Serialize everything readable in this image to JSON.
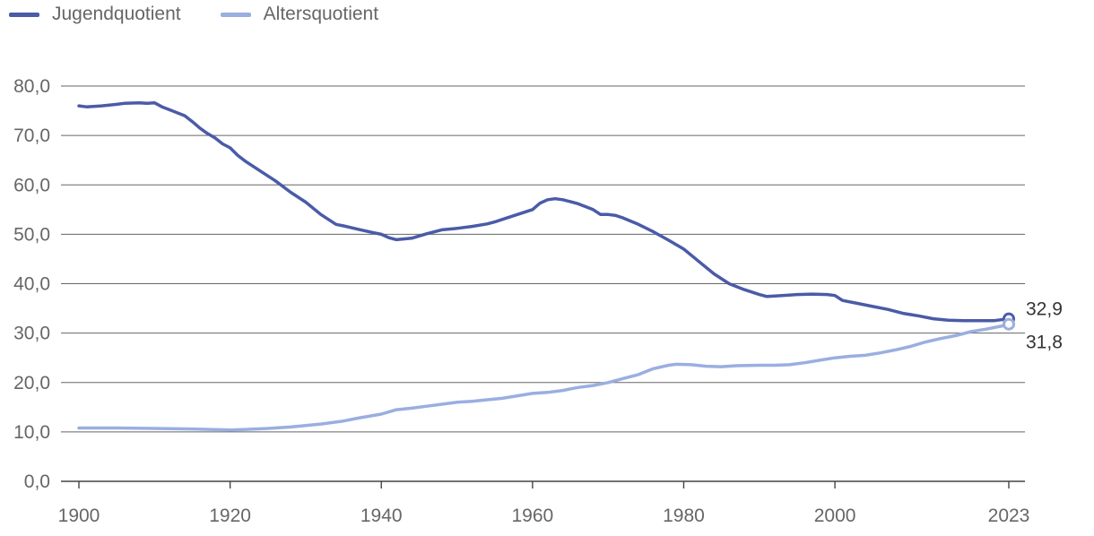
{
  "chart_data": {
    "type": "line",
    "title": "",
    "xlabel": "",
    "ylabel": "",
    "xlim": [
      1900,
      2023
    ],
    "ylim": [
      0,
      80
    ],
    "x_ticks": [
      1900,
      1920,
      1940,
      1960,
      1980,
      2000,
      2023
    ],
    "x_tick_labels": [
      "1900",
      "1920",
      "1940",
      "1960",
      "1980",
      "2000",
      "2023"
    ],
    "y_ticks": [
      0,
      10,
      20,
      30,
      40,
      50,
      60,
      70,
      80
    ],
    "y_tick_labels": [
      "0,0",
      "10,0",
      "20,0",
      "30,0",
      "40,0",
      "50,0",
      "60,0",
      "70,0",
      "80,0"
    ],
    "grid": "horizontal",
    "legend_position": "top-left",
    "series": [
      {
        "name": "Jugendquotient",
        "color": "#4a5ba8",
        "end_label": "32,9",
        "points": [
          [
            1900,
            76.0
          ],
          [
            1901,
            75.8
          ],
          [
            1903,
            76.0
          ],
          [
            1905,
            76.3
          ],
          [
            1906,
            76.5
          ],
          [
            1908,
            76.6
          ],
          [
            1909,
            76.5
          ],
          [
            1910,
            76.6
          ],
          [
            1911,
            75.8
          ],
          [
            1912,
            75.2
          ],
          [
            1914,
            74.0
          ],
          [
            1915,
            72.8
          ],
          [
            1916,
            71.5
          ],
          [
            1917,
            70.4
          ],
          [
            1918,
            69.5
          ],
          [
            1919,
            68.3
          ],
          [
            1920,
            67.5
          ],
          [
            1921,
            66.0
          ],
          [
            1922,
            64.8
          ],
          [
            1924,
            62.8
          ],
          [
            1926,
            60.8
          ],
          [
            1928,
            58.5
          ],
          [
            1930,
            56.5
          ],
          [
            1932,
            54.0
          ],
          [
            1934,
            52.0
          ],
          [
            1935,
            51.7
          ],
          [
            1937,
            51.0
          ],
          [
            1939,
            50.3
          ],
          [
            1940,
            50.0
          ],
          [
            1941,
            49.3
          ],
          [
            1942,
            48.9
          ],
          [
            1944,
            49.2
          ],
          [
            1946,
            50.1
          ],
          [
            1948,
            50.9
          ],
          [
            1950,
            51.2
          ],
          [
            1952,
            51.6
          ],
          [
            1954,
            52.1
          ],
          [
            1955,
            52.5
          ],
          [
            1956,
            53.0
          ],
          [
            1958,
            54.0
          ],
          [
            1960,
            55.0
          ],
          [
            1961,
            56.3
          ],
          [
            1962,
            57.0
          ],
          [
            1963,
            57.2
          ],
          [
            1964,
            57.0
          ],
          [
            1966,
            56.2
          ],
          [
            1968,
            55.0
          ],
          [
            1969,
            54.0
          ],
          [
            1970,
            54.0
          ],
          [
            1971,
            53.8
          ],
          [
            1972,
            53.3
          ],
          [
            1974,
            52.0
          ],
          [
            1976,
            50.5
          ],
          [
            1978,
            48.8
          ],
          [
            1980,
            47.0
          ],
          [
            1982,
            44.5
          ],
          [
            1984,
            42.0
          ],
          [
            1986,
            40.0
          ],
          [
            1988,
            38.8
          ],
          [
            1990,
            37.8
          ],
          [
            1991,
            37.4
          ],
          [
            1993,
            37.6
          ],
          [
            1995,
            37.8
          ],
          [
            1997,
            37.9
          ],
          [
            1999,
            37.8
          ],
          [
            2000,
            37.6
          ],
          [
            2001,
            36.6
          ],
          [
            2003,
            36.0
          ],
          [
            2005,
            35.4
          ],
          [
            2007,
            34.8
          ],
          [
            2009,
            34.0
          ],
          [
            2011,
            33.5
          ],
          [
            2013,
            32.9
          ],
          [
            2015,
            32.6
          ],
          [
            2017,
            32.5
          ],
          [
            2019,
            32.5
          ],
          [
            2021,
            32.5
          ],
          [
            2022,
            32.7
          ],
          [
            2023,
            32.9
          ]
        ]
      },
      {
        "name": "Altersquotient",
        "color": "#9aaee0",
        "end_label": "31,8",
        "points": [
          [
            1900,
            10.8
          ],
          [
            1905,
            10.8
          ],
          [
            1910,
            10.7
          ],
          [
            1915,
            10.6
          ],
          [
            1920,
            10.4
          ],
          [
            1922,
            10.5
          ],
          [
            1925,
            10.7
          ],
          [
            1928,
            11.0
          ],
          [
            1930,
            11.3
          ],
          [
            1932,
            11.6
          ],
          [
            1935,
            12.2
          ],
          [
            1937,
            12.8
          ],
          [
            1940,
            13.6
          ],
          [
            1942,
            14.5
          ],
          [
            1944,
            14.8
          ],
          [
            1946,
            15.2
          ],
          [
            1948,
            15.6
          ],
          [
            1950,
            16.0
          ],
          [
            1952,
            16.2
          ],
          [
            1954,
            16.5
          ],
          [
            1956,
            16.8
          ],
          [
            1958,
            17.3
          ],
          [
            1960,
            17.8
          ],
          [
            1962,
            18.0
          ],
          [
            1964,
            18.4
          ],
          [
            1966,
            19.0
          ],
          [
            1968,
            19.4
          ],
          [
            1970,
            20.0
          ],
          [
            1972,
            20.8
          ],
          [
            1974,
            21.6
          ],
          [
            1976,
            22.8
          ],
          [
            1978,
            23.5
          ],
          [
            1979,
            23.7
          ],
          [
            1981,
            23.6
          ],
          [
            1983,
            23.3
          ],
          [
            1985,
            23.2
          ],
          [
            1987,
            23.4
          ],
          [
            1990,
            23.5
          ],
          [
            1992,
            23.5
          ],
          [
            1994,
            23.6
          ],
          [
            1996,
            24.0
          ],
          [
            1998,
            24.5
          ],
          [
            2000,
            25.0
          ],
          [
            2002,
            25.3
          ],
          [
            2004,
            25.5
          ],
          [
            2006,
            26.0
          ],
          [
            2008,
            26.6
          ],
          [
            2010,
            27.3
          ],
          [
            2012,
            28.2
          ],
          [
            2014,
            28.9
          ],
          [
            2016,
            29.5
          ],
          [
            2018,
            30.3
          ],
          [
            2020,
            30.8
          ],
          [
            2022,
            31.4
          ],
          [
            2023,
            31.8
          ]
        ]
      }
    ]
  }
}
